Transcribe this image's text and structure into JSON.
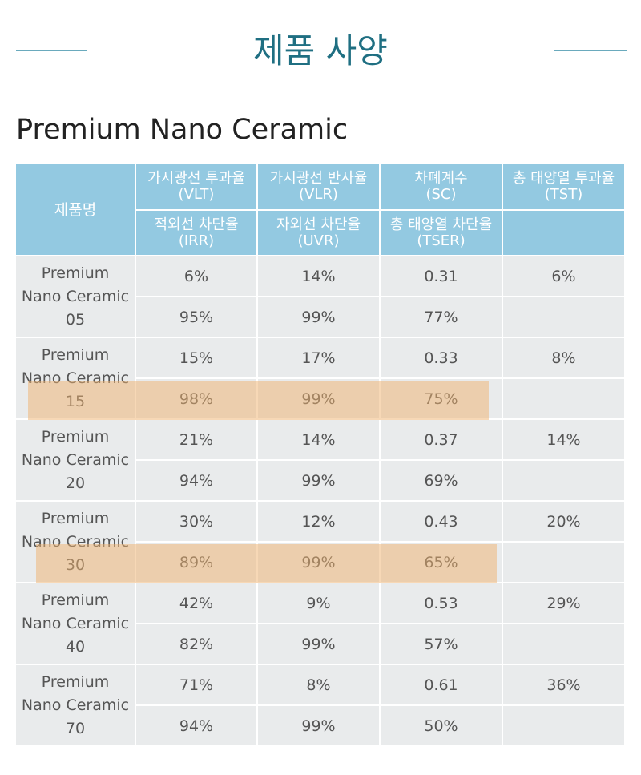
{
  "header": {
    "title": "제품 사양"
  },
  "section": {
    "title": "Premium Nano Ceramic"
  },
  "table": {
    "name_header": "제품명",
    "header_rows": [
      [
        {
          "label": "가시광선 투과율",
          "code": "(VLT)"
        },
        {
          "label": "가시광선 반사율",
          "code": "(VLR)"
        },
        {
          "label": "차폐계수",
          "code": "(SC)"
        },
        {
          "label": "총 태양열 투과율",
          "code": "(TST)"
        }
      ],
      [
        {
          "label": "적외선 차단율",
          "code": "(IRR)"
        },
        {
          "label": "자외선 차단율",
          "code": "(UVR)"
        },
        {
          "label": "총 태양열 차단율",
          "code": "(TSER)"
        }
      ]
    ],
    "products": [
      {
        "name": [
          "Premium",
          "Nano Ceramic",
          "05"
        ],
        "rows": [
          [
            "6%",
            "14%",
            "0.31",
            "6%"
          ],
          [
            "95%",
            "99%",
            "77%"
          ]
        ],
        "highlighted": false
      },
      {
        "name": [
          "Premium",
          "Nano Ceramic",
          "15"
        ],
        "rows": [
          [
            "15%",
            "17%",
            "0.33",
            "8%"
          ],
          [
            "98%",
            "99%",
            "75%"
          ]
        ],
        "highlighted": true
      },
      {
        "name": [
          "Premium",
          "Nano Ceramic",
          "20"
        ],
        "rows": [
          [
            "21%",
            "14%",
            "0.37",
            "14%"
          ],
          [
            "94%",
            "99%",
            "69%"
          ]
        ],
        "highlighted": false
      },
      {
        "name": [
          "Premium",
          "Nano Ceramic",
          "30"
        ],
        "rows": [
          [
            "30%",
            "12%",
            "0.43",
            "20%"
          ],
          [
            "89%",
            "99%",
            "65%"
          ]
        ],
        "highlighted": true
      },
      {
        "name": [
          "Premium",
          "Nano Ceramic",
          "40"
        ],
        "rows": [
          [
            "42%",
            "9%",
            "0.53",
            "29%"
          ],
          [
            "82%",
            "99%",
            "57%"
          ]
        ],
        "highlighted": false
      },
      {
        "name": [
          "Premium",
          "Nano Ceramic",
          "70"
        ],
        "rows": [
          [
            "71%",
            "8%",
            "0.61",
            "36%"
          ],
          [
            "94%",
            "99%",
            "50%"
          ]
        ],
        "highlighted": false
      }
    ]
  }
}
